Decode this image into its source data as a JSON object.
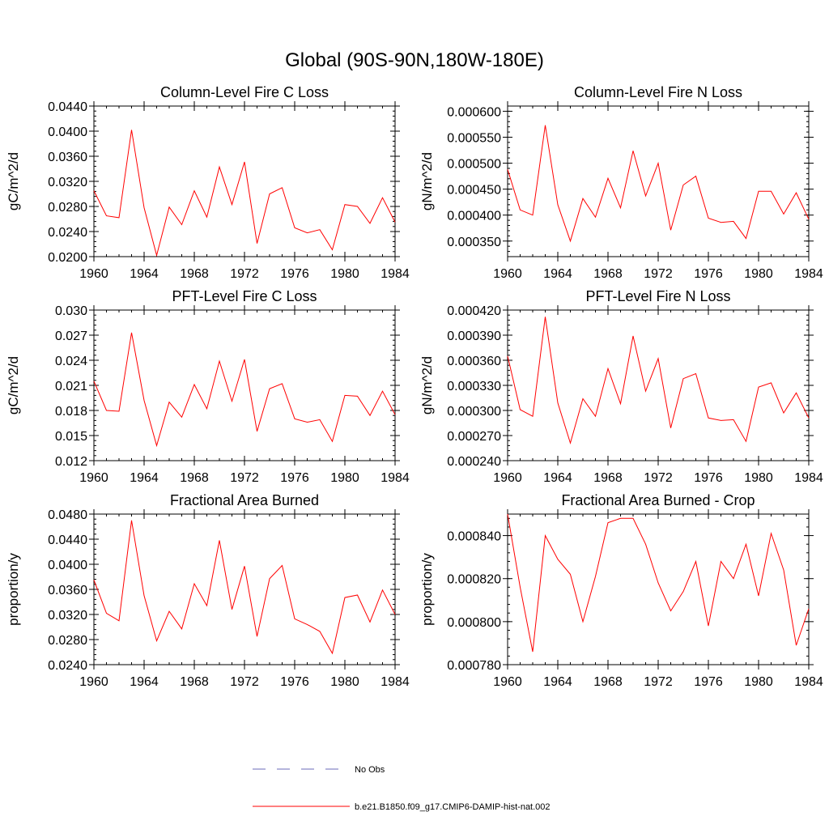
{
  "figure": {
    "title": "Global (90S-90N,180W-180E)"
  },
  "colors": {
    "series": "#ff0000",
    "obs": "#6b6bb8",
    "axis": "#000000"
  },
  "legend": {
    "position": "bottom-center",
    "items": [
      {
        "label": "No Obs",
        "style": "dashed",
        "color": "#6b6bb8"
      },
      {
        "label": "b.e21.B1850.f09_g17.CMIP6-DAMIP-hist-nat.002",
        "style": "solid",
        "color": "#ff0000"
      }
    ]
  },
  "chart_data": [
    {
      "type": "line",
      "title": "Column-Level Fire C Loss",
      "ylabel": "gC/m^2/d",
      "xlabel": "",
      "x": [
        1960,
        1961,
        1962,
        1963,
        1964,
        1965,
        1966,
        1967,
        1968,
        1969,
        1970,
        1971,
        1972,
        1973,
        1974,
        1975,
        1976,
        1977,
        1978,
        1979,
        1980,
        1981,
        1982,
        1983,
        1984
      ],
      "xlim": [
        1960,
        1984
      ],
      "xticks": [
        "1960",
        "1964",
        "1968",
        "1972",
        "1976",
        "1980",
        "1984"
      ],
      "ylim": [
        0.02,
        0.044
      ],
      "yticks": [
        "0.0200",
        "0.0240",
        "0.0280",
        "0.0320",
        "0.0360",
        "0.0400",
        "0.0440"
      ],
      "series": [
        {
          "name": "b.e21.B1850.f09_g17.CMIP6-DAMIP-hist-nat.002",
          "values": [
            0.0305,
            0.0265,
            0.0262,
            0.0402,
            0.0278,
            0.0202,
            0.0279,
            0.0251,
            0.0305,
            0.0263,
            0.0343,
            0.0283,
            0.0351,
            0.0221,
            0.03,
            0.031,
            0.0246,
            0.0238,
            0.0243,
            0.0211,
            0.0283,
            0.028,
            0.0253,
            0.0294,
            0.0255
          ]
        }
      ]
    },
    {
      "type": "line",
      "title": "Column-Level Fire N Loss",
      "ylabel": "gN/m^2/d",
      "xlabel": "",
      "x": [
        1960,
        1961,
        1962,
        1963,
        1964,
        1965,
        1966,
        1967,
        1968,
        1969,
        1970,
        1971,
        1972,
        1973,
        1974,
        1975,
        1976,
        1977,
        1978,
        1979,
        1980,
        1981,
        1982,
        1983,
        1984
      ],
      "xlim": [
        1960,
        1984
      ],
      "xticks": [
        "1960",
        "1964",
        "1968",
        "1972",
        "1976",
        "1980",
        "1984"
      ],
      "ylim": [
        0.00032,
        0.00061
      ],
      "yticks": [
        "0.000350",
        "0.000400",
        "0.000450",
        "0.000500",
        "0.000550",
        "0.000600"
      ],
      "series": [
        {
          "name": "b.e21.B1850.f09_g17.CMIP6-DAMIP-hist-nat.002",
          "values": [
            0.000488,
            0.00041,
            0.0004,
            0.000573,
            0.00042,
            0.00035,
            0.000432,
            0.000396,
            0.000471,
            0.000414,
            0.000524,
            0.000437,
            0.0005,
            0.000371,
            0.000458,
            0.000475,
            0.000394,
            0.000386,
            0.000388,
            0.000355,
            0.000446,
            0.000446,
            0.000402,
            0.000443,
            0.000392
          ]
        }
      ]
    },
    {
      "type": "line",
      "title": "PFT-Level Fire C Loss",
      "ylabel": "gC/m^2/d",
      "xlabel": "",
      "x": [
        1960,
        1961,
        1962,
        1963,
        1964,
        1965,
        1966,
        1967,
        1968,
        1969,
        1970,
        1971,
        1972,
        1973,
        1974,
        1975,
        1976,
        1977,
        1978,
        1979,
        1980,
        1981,
        1982,
        1983,
        1984
      ],
      "xlim": [
        1960,
        1984
      ],
      "xticks": [
        "1960",
        "1964",
        "1968",
        "1972",
        "1976",
        "1980",
        "1984"
      ],
      "ylim": [
        0.012,
        0.03
      ],
      "yticks": [
        "0.012",
        "0.015",
        "0.018",
        "0.021",
        "0.024",
        "0.027",
        "0.030"
      ],
      "series": [
        {
          "name": "b.e21.B1850.f09_g17.CMIP6-DAMIP-hist-nat.002",
          "values": [
            0.0215,
            0.018,
            0.0179,
            0.0273,
            0.0192,
            0.0138,
            0.019,
            0.0172,
            0.0211,
            0.0182,
            0.0239,
            0.0191,
            0.0241,
            0.0155,
            0.0206,
            0.0212,
            0.017,
            0.0166,
            0.0169,
            0.0143,
            0.0198,
            0.0197,
            0.0174,
            0.0203,
            0.0175
          ]
        }
      ]
    },
    {
      "type": "line",
      "title": "PFT-Level Fire N Loss",
      "ylabel": "gN/m^2/d",
      "xlabel": "",
      "x": [
        1960,
        1961,
        1962,
        1963,
        1964,
        1965,
        1966,
        1967,
        1968,
        1969,
        1970,
        1971,
        1972,
        1973,
        1974,
        1975,
        1976,
        1977,
        1978,
        1979,
        1980,
        1981,
        1982,
        1983,
        1984
      ],
      "xlim": [
        1960,
        1984
      ],
      "xticks": [
        "1960",
        "1964",
        "1968",
        "1972",
        "1976",
        "1980",
        "1984"
      ],
      "ylim": [
        0.00024,
        0.00042
      ],
      "yticks": [
        "0.000240",
        "0.000270",
        "0.000300",
        "0.000330",
        "0.000360",
        "0.000390",
        "0.000420"
      ],
      "series": [
        {
          "name": "b.e21.B1850.f09_g17.CMIP6-DAMIP-hist-nat.002",
          "values": [
            0.000365,
            0.000301,
            0.000293,
            0.000412,
            0.000309,
            0.000261,
            0.000314,
            0.000293,
            0.00035,
            0.000308,
            0.000389,
            0.000323,
            0.000362,
            0.000279,
            0.000338,
            0.000344,
            0.000291,
            0.000288,
            0.000289,
            0.000263,
            0.000328,
            0.000333,
            0.000297,
            0.000321,
            0.000291
          ]
        }
      ]
    },
    {
      "type": "line",
      "title": "Fractional Area Burned",
      "ylabel": "proportion/y",
      "xlabel": "",
      "x": [
        1960,
        1961,
        1962,
        1963,
        1964,
        1965,
        1966,
        1967,
        1968,
        1969,
        1970,
        1971,
        1972,
        1973,
        1974,
        1975,
        1976,
        1977,
        1978,
        1979,
        1980,
        1981,
        1982,
        1983,
        1984
      ],
      "xlim": [
        1960,
        1984
      ],
      "xticks": [
        "1960",
        "1964",
        "1968",
        "1972",
        "1976",
        "1980",
        "1984"
      ],
      "ylim": [
        0.024,
        0.048
      ],
      "yticks": [
        "0.0240",
        "0.0280",
        "0.0320",
        "0.0360",
        "0.0400",
        "0.0440",
        "0.0480"
      ],
      "series": [
        {
          "name": "b.e21.B1850.f09_g17.CMIP6-DAMIP-hist-nat.002",
          "values": [
            0.0375,
            0.0322,
            0.031,
            0.047,
            0.035,
            0.0278,
            0.0325,
            0.0297,
            0.0369,
            0.0334,
            0.0438,
            0.0328,
            0.0397,
            0.0285,
            0.0377,
            0.0398,
            0.0313,
            0.0304,
            0.0293,
            0.0258,
            0.0347,
            0.0351,
            0.0308,
            0.0359,
            0.032
          ]
        }
      ]
    },
    {
      "type": "line",
      "title": "Fractional Area Burned - Crop",
      "ylabel": "proportion/y",
      "xlabel": "",
      "x": [
        1960,
        1961,
        1962,
        1963,
        1964,
        1965,
        1966,
        1967,
        1968,
        1969,
        1970,
        1971,
        1972,
        1973,
        1974,
        1975,
        1976,
        1977,
        1978,
        1979,
        1980,
        1981,
        1982,
        1983,
        1984
      ],
      "xlim": [
        1960,
        1984
      ],
      "xticks": [
        "1960",
        "1964",
        "1968",
        "1972",
        "1976",
        "1980",
        "1984"
      ],
      "ylim": [
        0.00078,
        0.00085
      ],
      "yticks": [
        "0.000780",
        "0.000800",
        "0.000820",
        "0.000840"
      ],
      "series": [
        {
          "name": "b.e21.B1850.f09_g17.CMIP6-DAMIP-hist-nat.002",
          "values": [
            0.00085,
            0.000816,
            0.000786,
            0.00084,
            0.000829,
            0.000822,
            0.0008,
            0.000821,
            0.000846,
            0.000848,
            0.000848,
            0.000836,
            0.000818,
            0.000805,
            0.000814,
            0.000828,
            0.000798,
            0.000828,
            0.00082,
            0.000836,
            0.000812,
            0.000841,
            0.000824,
            0.000789,
            0.000806
          ]
        }
      ]
    }
  ]
}
